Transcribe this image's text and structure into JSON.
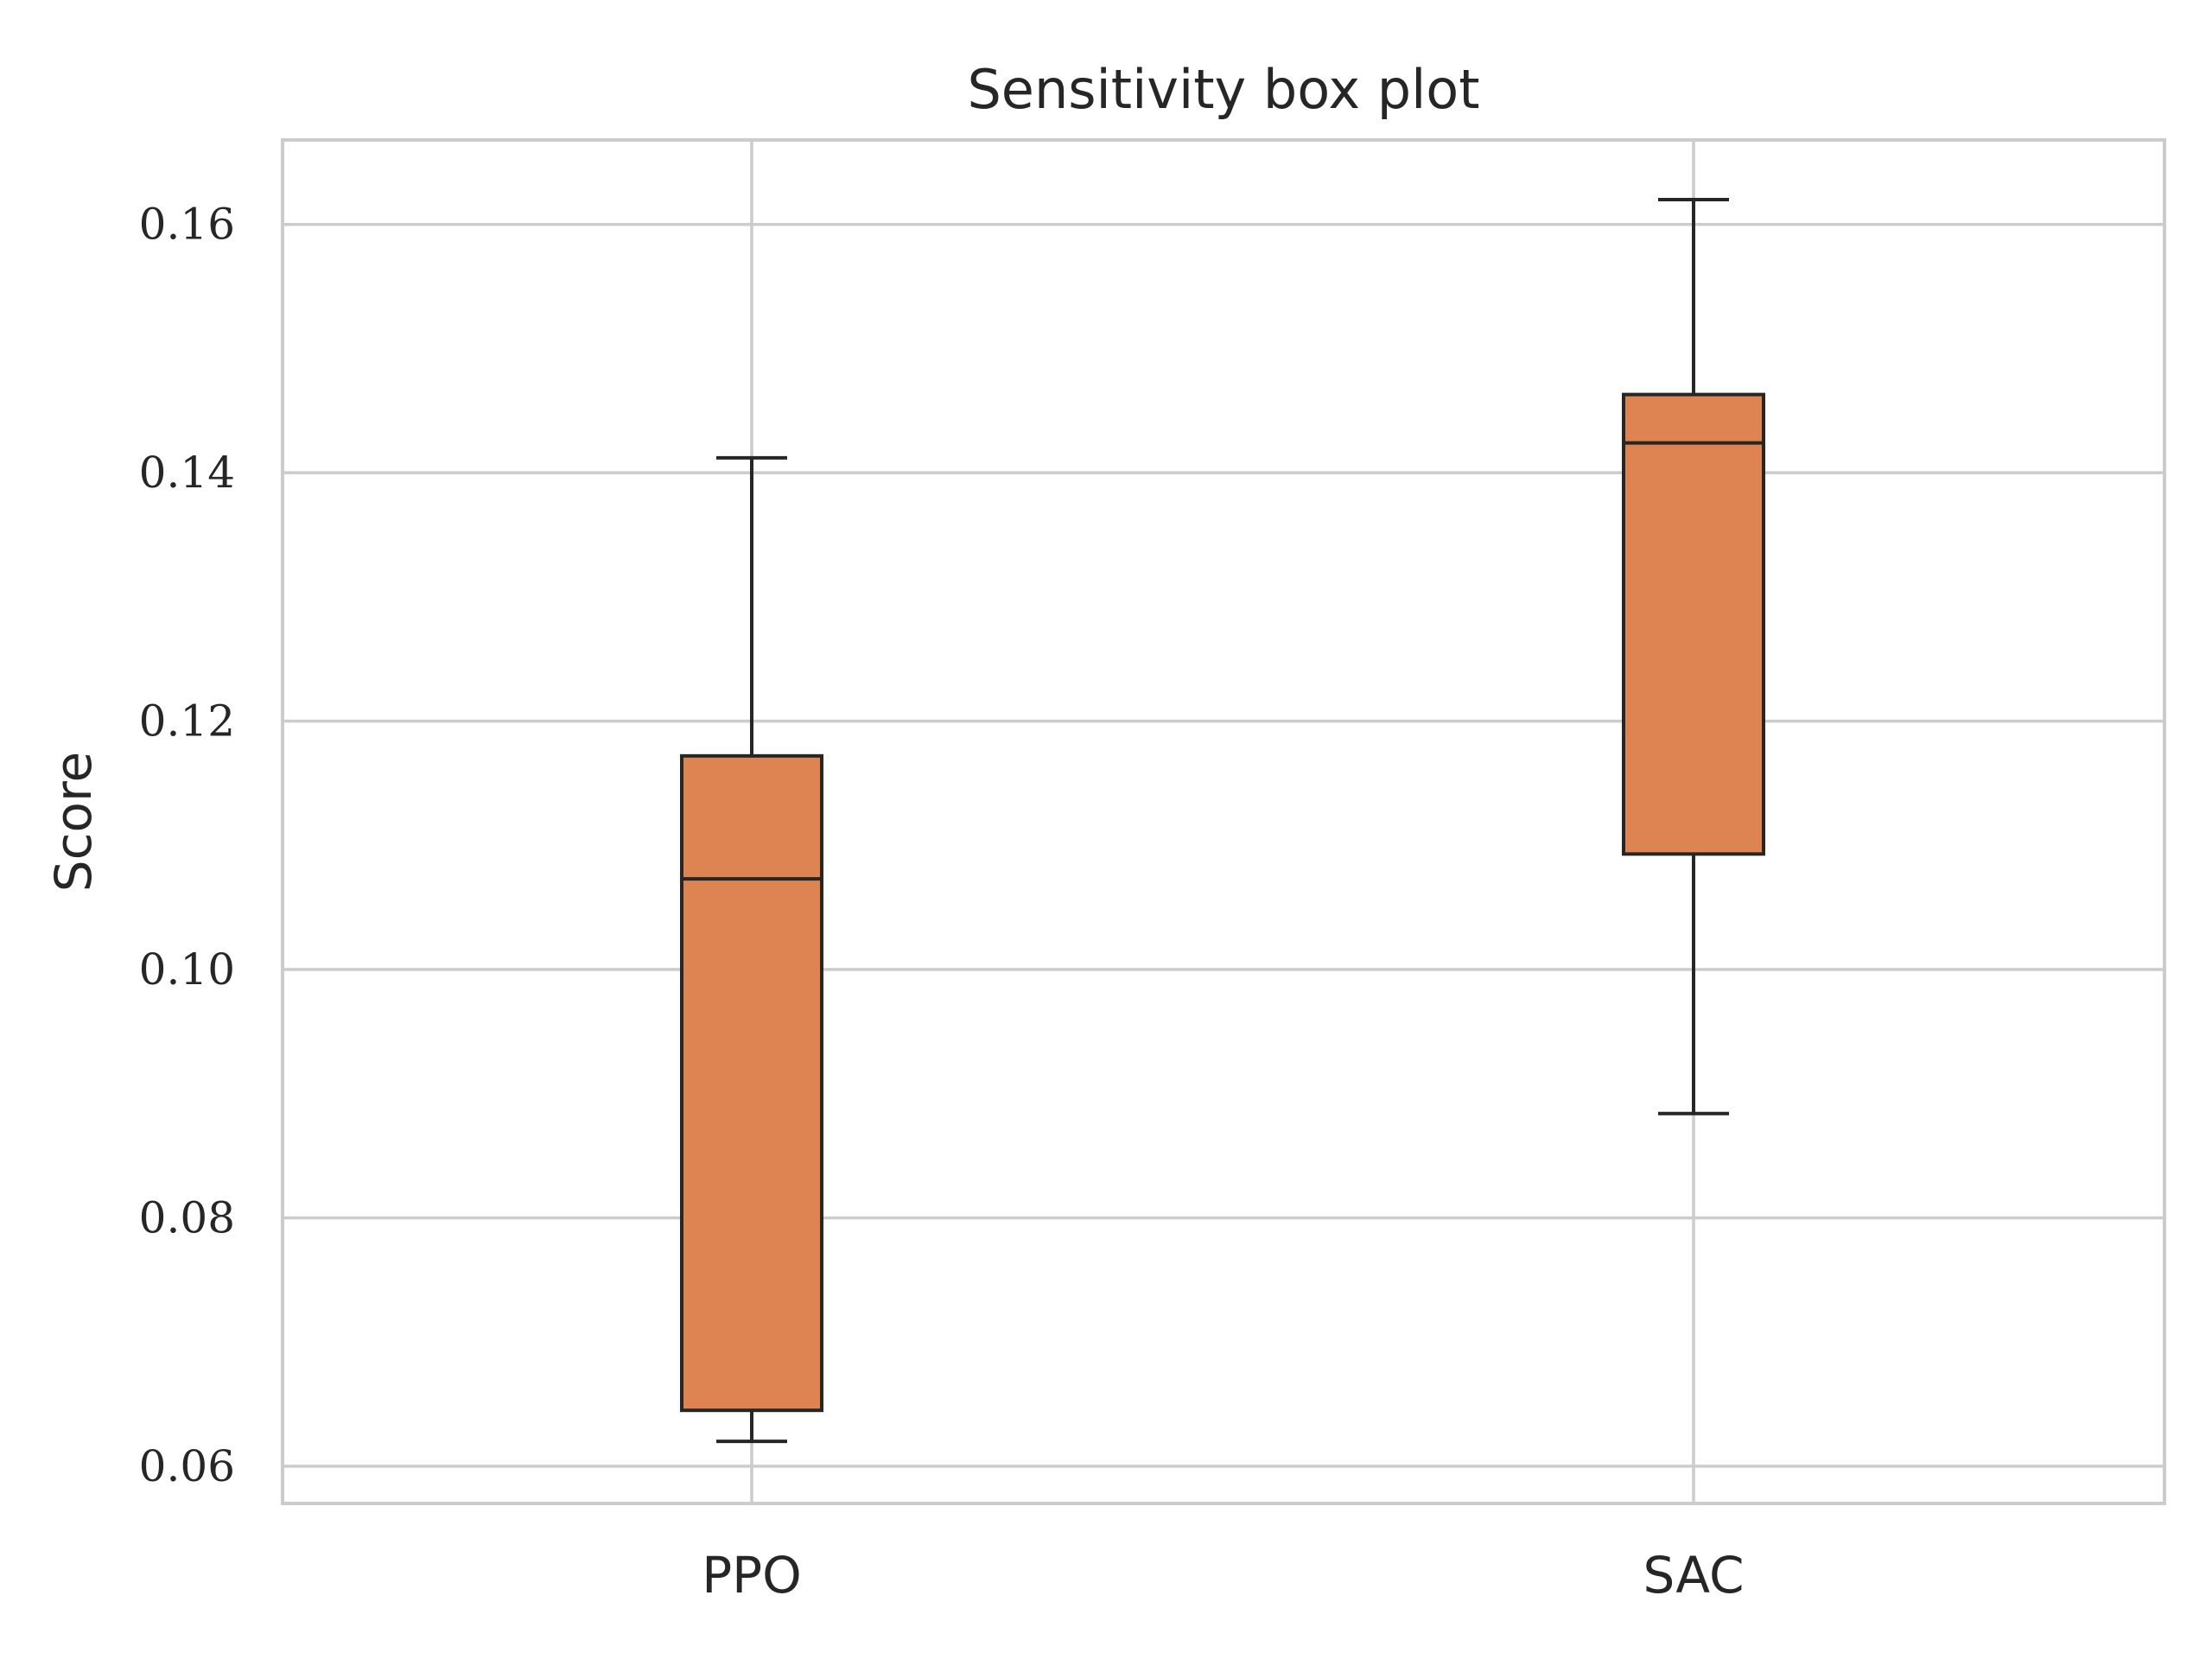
{
  "chart_data": {
    "type": "box",
    "title": "Sensitivity box plot",
    "xlabel": "",
    "ylabel": "Score",
    "categories": [
      "PPO",
      "SAC"
    ],
    "boxes": [
      {
        "category": "PPO",
        "whisker_low": 0.062,
        "q1": 0.0645,
        "median": 0.1073,
        "q3": 0.1172,
        "whisker_high": 0.1412
      },
      {
        "category": "SAC",
        "whisker_low": 0.0884,
        "q1": 0.1093,
        "median": 0.1424,
        "q3": 0.1463,
        "whisker_high": 0.162
      }
    ],
    "yticks": [
      "0.06",
      "0.08",
      "0.10",
      "0.12",
      "0.14",
      "0.16"
    ],
    "ylim": [
      0.057,
      0.1668
    ],
    "grid": true,
    "box_color": "#dd8452",
    "line_color": "#262626",
    "grid_color": "#cccccc"
  }
}
